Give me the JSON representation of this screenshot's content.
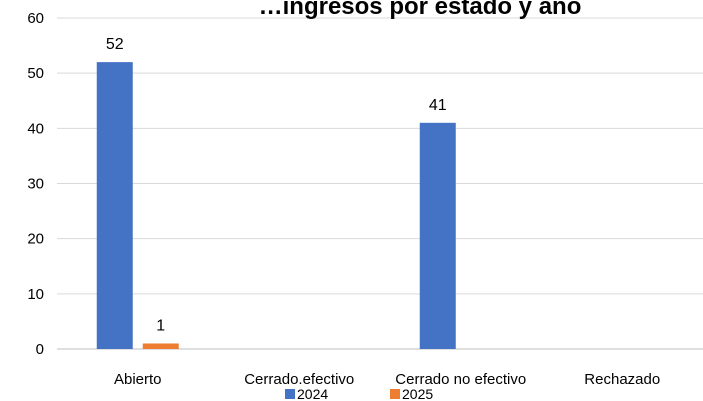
{
  "chart_data": {
    "type": "bar",
    "title": "…ingresos por estado y año",
    "categories": [
      "Abierto",
      "Cerrado.efectivo",
      "Cerrado no efectivo",
      "Rechazado"
    ],
    "series": [
      {
        "name": "2024",
        "color": "#4472C4",
        "values": [
          52,
          0,
          41,
          0
        ],
        "labels": [
          "52",
          "",
          "41",
          ""
        ]
      },
      {
        "name": "2025",
        "color": "#ED7D31",
        "values": [
          1,
          0,
          0,
          0
        ],
        "labels": [
          "1",
          "",
          "",
          ""
        ]
      }
    ],
    "yticks": [
      "0",
      "10",
      "20",
      "30",
      "40",
      "50",
      "60"
    ],
    "ylim": [
      0,
      60
    ],
    "xlabel": "",
    "ylabel": "",
    "grid": true,
    "legend": "bottom"
  }
}
